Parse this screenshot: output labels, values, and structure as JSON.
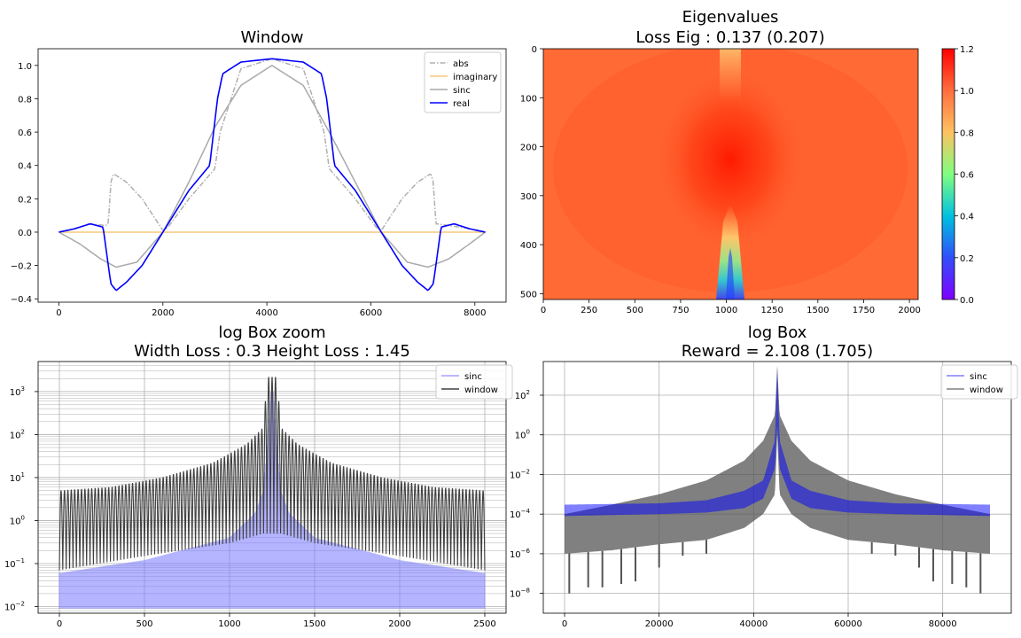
{
  "chart_data": [
    {
      "id": "window",
      "type": "line",
      "title": "Window",
      "xlabel": "",
      "ylabel": "",
      "xlim": [
        -400,
        8600
      ],
      "ylim": [
        -0.42,
        1.1
      ],
      "xticks": [
        0,
        2000,
        4000,
        6000,
        8000
      ],
      "yticks": [
        -0.4,
        -0.2,
        0.0,
        0.2,
        0.4,
        0.6,
        0.8,
        1.0
      ],
      "ytick_labels": [
        "−0.4",
        "−0.2",
        "0.0",
        "0.2",
        "0.4",
        "0.6",
        "0.8",
        "1.0"
      ],
      "grid": false,
      "legend_position": "top-right",
      "series": [
        {
          "name": "abs",
          "color": "#b0b0b0",
          "style": "dashdot",
          "x": [
            0,
            300,
            600,
            900,
            950,
            1000,
            1050,
            1100,
            1300,
            1600,
            2000,
            2100,
            2500,
            3000,
            3100,
            3500,
            4096,
            4700,
            5100,
            5200,
            5700,
            6100,
            6200,
            6600,
            6900,
            7100,
            7150,
            7200,
            7250,
            7500,
            7900,
            8200
          ],
          "y": [
            0,
            0.02,
            0.05,
            0.04,
            0.05,
            0.3,
            0.35,
            0.34,
            0.3,
            0.2,
            0.01,
            0.03,
            0.2,
            0.38,
            0.6,
            0.98,
            1.04,
            0.98,
            0.6,
            0.38,
            0.2,
            0.03,
            0.01,
            0.2,
            0.3,
            0.34,
            0.35,
            0.3,
            0.05,
            0.04,
            0.02,
            0
          ]
        },
        {
          "name": "imaginary",
          "color": "#f5c87a",
          "style": "solid",
          "x": [
            0,
            8200
          ],
          "y": [
            0,
            0
          ]
        },
        {
          "name": "sinc",
          "color": "#a9a9a9",
          "style": "solid",
          "x": [
            0,
            400,
            800,
            1100,
            1500,
            2000,
            2500,
            3000,
            3500,
            4096,
            4700,
            5200,
            5700,
            6200,
            6700,
            7100,
            7500,
            7900,
            8200
          ],
          "y": [
            0,
            -0.07,
            -0.16,
            -0.21,
            -0.18,
            0.0,
            0.3,
            0.63,
            0.88,
            1.0,
            0.88,
            0.6,
            0.3,
            0.0,
            -0.18,
            -0.21,
            -0.16,
            -0.07,
            0
          ]
        },
        {
          "name": "real",
          "color": "#0000ff",
          "style": "solid",
          "x": [
            0,
            300,
            600,
            850,
            950,
            1000,
            1100,
            1300,
            1600,
            2000,
            2500,
            2900,
            3050,
            3150,
            3500,
            4096,
            4700,
            5050,
            5150,
            5300,
            5700,
            6200,
            6600,
            6900,
            7100,
            7200,
            7250,
            7350,
            7600,
            7900,
            8200
          ],
          "y": [
            0,
            0.02,
            0.05,
            0.03,
            -0.2,
            -0.31,
            -0.35,
            -0.3,
            -0.2,
            0.0,
            0.25,
            0.4,
            0.8,
            0.95,
            1.02,
            1.04,
            1.02,
            0.95,
            0.8,
            0.4,
            0.25,
            0.0,
            -0.2,
            -0.3,
            -0.35,
            -0.31,
            -0.2,
            0.03,
            0.05,
            0.02,
            0
          ]
        }
      ]
    },
    {
      "id": "eigen",
      "type": "heatmap",
      "title": "Eigenvalues",
      "subtitle": "Loss Eig : 0.137 (0.207)",
      "xlabel": "",
      "ylabel": "",
      "xlim": [
        0,
        2048
      ],
      "ylim": [
        512,
        0
      ],
      "xticks": [
        0,
        250,
        500,
        750,
        1000,
        1250,
        1500,
        1750,
        2000
      ],
      "yticks": [
        0,
        100,
        200,
        300,
        400,
        500
      ],
      "colorbar": {
        "range": [
          0,
          1.2
        ],
        "ticks": [
          0.0,
          0.2,
          0.4,
          0.6,
          0.8,
          1.0,
          1.2
        ],
        "tick_labels": [
          "0.0",
          "0.2",
          "0.4",
          "0.6",
          "0.8",
          "1.0",
          "1.2"
        ],
        "colormap": "rainbow"
      },
      "base_value": 1.05,
      "peak": {
        "x": 1024,
        "y": 250,
        "value": 1.2
      },
      "low_spot": {
        "x": 1024,
        "y": 512,
        "value": 0.05
      },
      "high_top_stripe": {
        "x": 1024,
        "value": 0.95
      }
    },
    {
      "id": "logzoom",
      "type": "line",
      "title": "log Box zoom",
      "subtitle": "Width Loss : 0.3 \u001bHeight Loss : 1.45",
      "xlabel": "",
      "ylabel": "",
      "xlim": [
        -125,
        2625
      ],
      "ylog": true,
      "ylim": [
        0.007,
        5000
      ],
      "xticks": [
        0,
        500,
        1000,
        1500,
        2000,
        2500
      ],
      "yticks": [
        0.01,
        0.1,
        1,
        10,
        100,
        1000
      ],
      "ytick_labels": [
        "10",
        "10",
        "10",
        "10",
        "10",
        "10"
      ],
      "ytick_exponents": [
        "−2",
        "−1",
        "0",
        "1",
        "2",
        "3"
      ],
      "grid": true,
      "legend_position": "top-right",
      "series": [
        {
          "name": "sinc",
          "color": "#7777ff",
          "envelope_top_x": [
            0,
            500,
            1000,
            1150,
            1200,
            1250,
            1300,
            1350,
            1500,
            2000,
            2500
          ],
          "envelope_top_y": [
            0.06,
            0.12,
            0.4,
            1.5,
            5,
            2000,
            5,
            1.5,
            0.4,
            0.12,
            0.06
          ],
          "envelope_bottom": 0.009
        },
        {
          "name": "window",
          "color": "#404040",
          "center": 1250,
          "peak": 2200,
          "lobe_period": 20,
          "upper_x": [
            0,
            300,
            600,
            900,
            1100,
            1200,
            1220,
            1250,
            1280,
            1300,
            1400,
            1600,
            1900,
            2200,
            2500
          ],
          "upper_y": [
            5,
            6,
            10,
            22,
            60,
            150,
            2200,
            2200,
            2200,
            150,
            60,
            22,
            10,
            6,
            5
          ],
          "lower_x": [
            0,
            500,
            1000,
            1200,
            1300,
            1500,
            2000,
            2500
          ],
          "lower_y": [
            0.07,
            0.15,
            0.3,
            0.5,
            0.5,
            0.3,
            0.15,
            0.07
          ]
        }
      ]
    },
    {
      "id": "logbox",
      "type": "line",
      "title": "log Box",
      "subtitle": "Reward = 2.108 (1.705)",
      "xlabel": "",
      "ylabel": "",
      "xlim": [
        -4500,
        94500
      ],
      "ylog": true,
      "ylim": [
        1e-09,
        5000
      ],
      "xticks": [
        0,
        20000,
        40000,
        60000,
        80000
      ],
      "yticks": [
        1e-08,
        1e-06,
        0.0001,
        0.01,
        1,
        100
      ],
      "ytick_labels": [
        "10",
        "10",
        "10",
        "10",
        "10",
        "10"
      ],
      "ytick_exponents": [
        "−8",
        "−6",
        "−4",
        "−2",
        "0",
        "2"
      ],
      "grid": true,
      "legend_position": "top-right",
      "series": [
        {
          "name": "sinc",
          "color": "#0000ff",
          "band_x": [
            0,
            20000,
            30000,
            38000,
            42000,
            44500,
            45000,
            45500,
            48000,
            52000,
            60000,
            70000,
            90000
          ],
          "band_top": [
            0.0003,
            0.00035,
            0.0005,
            0.0015,
            0.005,
            0.5,
            3000,
            0.5,
            0.005,
            0.0015,
            0.0005,
            0.00035,
            0.0003
          ],
          "band_bottom": [
            8e-05,
            0.0001,
            0.00012,
            0.0002,
            0.0006,
            0.02,
            3,
            0.02,
            0.0006,
            0.0002,
            0.00012,
            0.0001,
            8e-05
          ]
        },
        {
          "name": "window",
          "color": "#555555",
          "band_x": [
            0,
            10000,
            20000,
            30000,
            38000,
            42000,
            44500,
            45000,
            45500,
            48000,
            52000,
            60000,
            70000,
            80000,
            90000
          ],
          "band_top": [
            0.0001,
            0.0003,
            0.001,
            0.005,
            0.05,
            0.5,
            10,
            3000,
            10,
            0.5,
            0.05,
            0.005,
            0.001,
            0.0003,
            0.0001
          ],
          "band_bottom": [
            1e-06,
            1.5e-06,
            3e-06,
            5e-06,
            2e-05,
            0.0001,
            0.001,
            1,
            0.001,
            0.0001,
            2e-05,
            5e-06,
            3e-06,
            1.5e-06,
            1e-06
          ],
          "dips_x": [
            1000,
            5000,
            8000,
            12000,
            15000,
            20000,
            25000,
            30000,
            65000,
            70000,
            75000,
            78000,
            82000,
            85000,
            88000
          ],
          "dips_y": [
            1e-08,
            2e-08,
            2e-08,
            3e-08,
            4e-08,
            2e-07,
            8e-07,
            1e-06,
            1e-06,
            8e-07,
            2e-07,
            4e-08,
            3e-08,
            2e-08,
            1e-08
          ]
        }
      ]
    }
  ]
}
